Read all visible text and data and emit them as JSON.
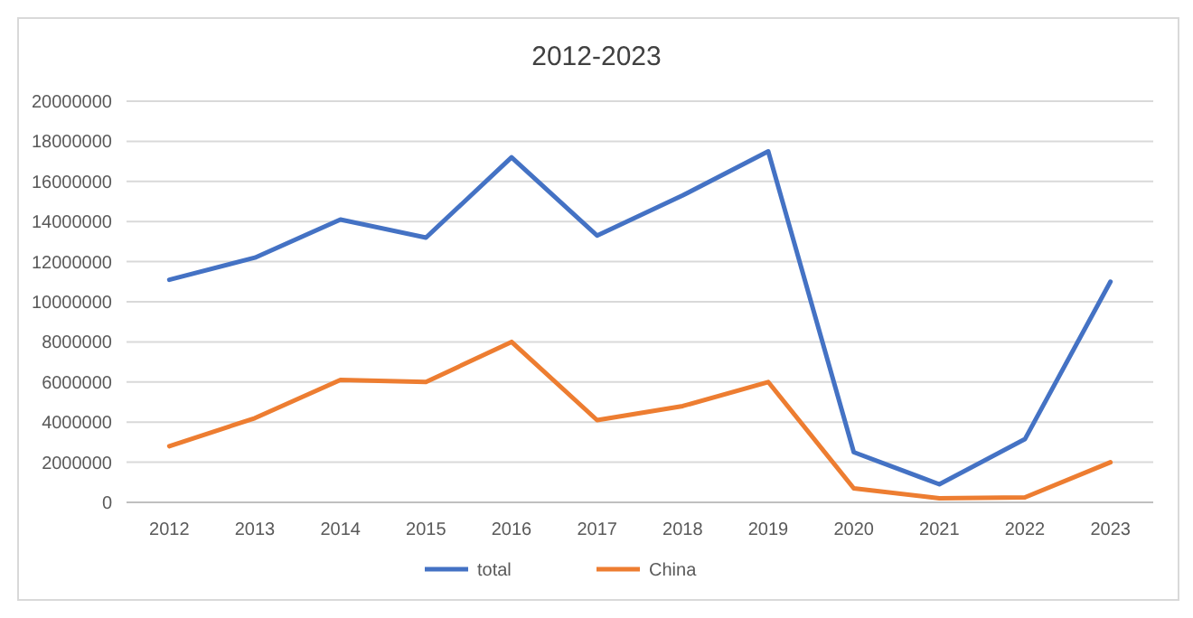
{
  "chart_data": {
    "type": "line",
    "title": "2012-2023",
    "categories": [
      "2012",
      "2013",
      "2014",
      "2015",
      "2016",
      "2017",
      "2018",
      "2019",
      "2020",
      "2021",
      "2022",
      "2023"
    ],
    "series": [
      {
        "name": "total",
        "color": "#4472c4",
        "values": [
          11100000,
          12200000,
          14100000,
          13200000,
          17200000,
          13300000,
          15300000,
          17500000,
          2500000,
          900000,
          3150000,
          11000000
        ]
      },
      {
        "name": "China",
        "color": "#ed7d31",
        "values": [
          2800000,
          4200000,
          6100000,
          6000000,
          8000000,
          4100000,
          4800000,
          6000000,
          700000,
          200000,
          250000,
          2000000
        ]
      }
    ],
    "ylim": [
      0,
      20000000
    ],
    "yticks": [
      0,
      2000000,
      4000000,
      6000000,
      8000000,
      10000000,
      12000000,
      14000000,
      16000000,
      18000000,
      20000000
    ],
    "grid": "y",
    "legend": "bottom",
    "marker": "none",
    "line_style": "solid"
  }
}
